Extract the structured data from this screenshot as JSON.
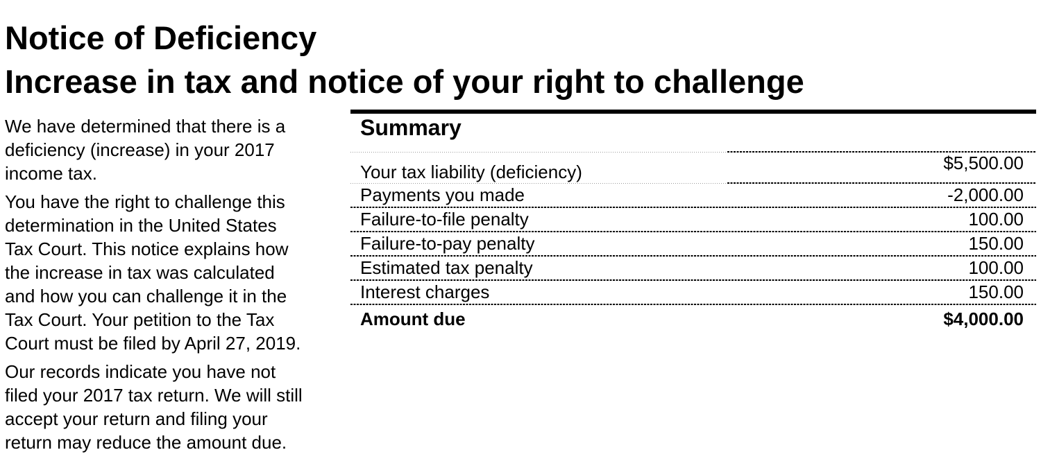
{
  "document": {
    "title_lines": [
      "Notice of Deficiency",
      "Increase in tax and notice of your right to challenge"
    ],
    "body_paragraphs": [
      {
        "lines": [
          "We have determined that there is a",
          "deficiency (increase) in your 2017",
          "income tax."
        ]
      },
      {
        "lines": [
          "You have the right to challenge this",
          "determination in the United States",
          "Tax Court. This notice explains how",
          "the increase in tax was calculated",
          "and how you can challenge it in the",
          "Tax Court. Your petition to the Tax",
          "Court must be filed by April 27, 2019."
        ]
      },
      {
        "lines": [
          "Our records indicate you have not",
          "filed your 2017 tax return. We will still",
          "accept your return and filing your",
          "return may reduce the amount due."
        ]
      }
    ],
    "summary": {
      "heading": "Summary",
      "rows": [
        {
          "label": "Your tax liability (deficiency)",
          "value": "$5,500.00"
        },
        {
          "label": "Payments you made",
          "value": "-2,000.00"
        },
        {
          "label": "Failure-to-file penalty",
          "value": "100.00"
        },
        {
          "label": "Failure-to-pay penalty",
          "value": "150.00"
        },
        {
          "label": "Estimated tax penalty",
          "value": "100.00"
        },
        {
          "label": "Interest charges",
          "value": "150.00"
        },
        {
          "label": "Amount due",
          "value": "$4,000.00"
        }
      ]
    }
  },
  "colors": {
    "text": "#000000",
    "background": "#ffffff",
    "separator_dark": "#000000",
    "separator_light": "#9a9a9a"
  }
}
